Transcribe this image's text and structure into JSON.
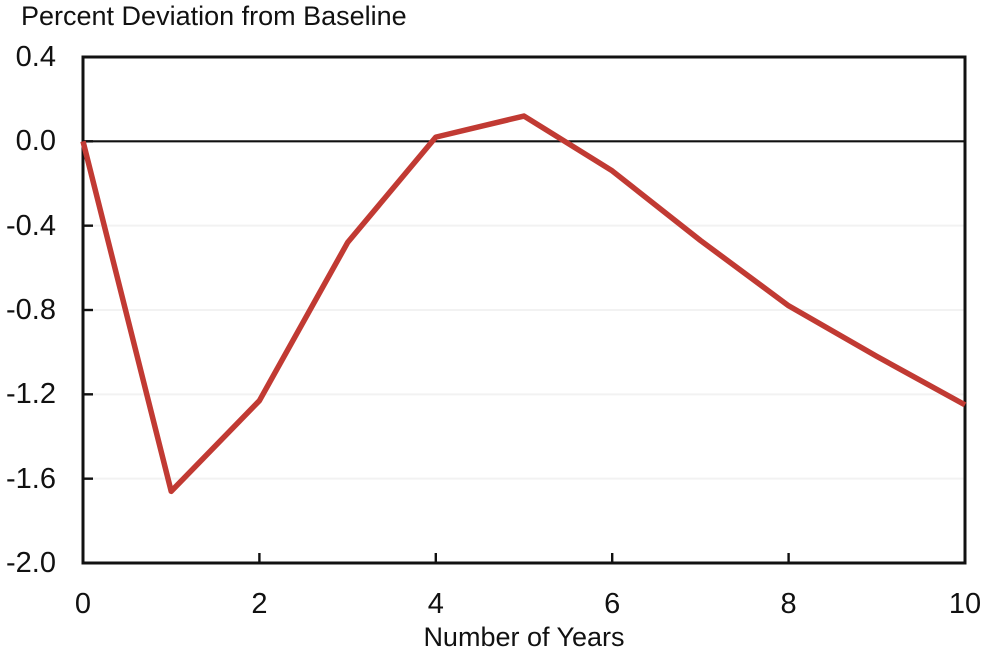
{
  "chart_data": {
    "type": "line",
    "title": "Percent Deviation from Baseline",
    "xlabel": "Number of Years",
    "ylabel": "",
    "x": [
      0,
      1,
      2,
      3,
      4,
      5,
      6,
      7,
      8,
      9,
      10
    ],
    "values": [
      0.0,
      -1.66,
      -1.23,
      -0.48,
      0.02,
      0.12,
      -0.14,
      -0.47,
      -0.78,
      -1.02,
      -1.25
    ],
    "xlim": [
      0,
      10
    ],
    "ylim": [
      -2.0,
      0.4
    ],
    "xticks": [
      0,
      2,
      4,
      6,
      8,
      10
    ],
    "xtick_labels": [
      "0",
      "2",
      "4",
      "6",
      "8",
      "10"
    ],
    "yticks": [
      0.4,
      0.0,
      -0.4,
      -0.8,
      -1.2,
      -1.6,
      -2.0
    ],
    "ytick_labels": [
      "0.4",
      "0.0",
      "-0.4",
      "-0.8",
      "-1.2",
      "-1.6",
      "-2.0"
    ],
    "legend": "none",
    "grid": "faint horizontal lines at y ticks",
    "zero_line": true,
    "line_color": "#c13a33",
    "axis_color": "#111111",
    "zero_line_color": "#111111",
    "grid_color": "#f2f2f2"
  }
}
